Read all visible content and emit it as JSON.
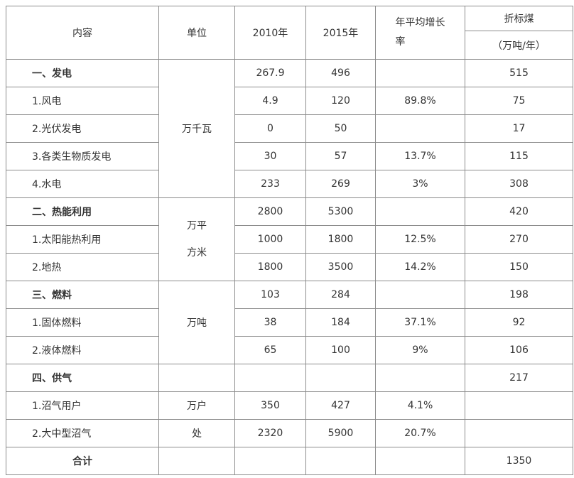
{
  "header": {
    "content": "内容",
    "unit": "单位",
    "y2010": "2010年",
    "y2015": "2015年",
    "growth": "年平均增长率",
    "coal": "折标煤",
    "coal_unit": "（万吨/年）"
  },
  "rows": [
    {
      "content": "一、发电",
      "unit": "万千瓦",
      "y2010": 267.9,
      "y2015": 496,
      "coal": 515
    },
    {
      "content": "1.风电",
      "y2010": 4.9,
      "y2015": 120,
      "growth": "89.8%",
      "coal": 75
    },
    {
      "content": "2.光伏发电",
      "y2010": 0,
      "y2015": 50,
      "coal": 17
    },
    {
      "content": "3.各类生物质发电",
      "y2010": 30,
      "y2015": 57,
      "growth": "13.7%",
      "coal": 115
    },
    {
      "content": "4.水电",
      "y2010": 233,
      "y2015": 269,
      "growth": "3%",
      "coal": 308
    },
    {
      "content": "二、热能利用",
      "unit": "万平方米",
      "y2010": 2800,
      "y2015": 5300,
      "coal": 420
    },
    {
      "content": "1.太阳能热利用",
      "y2010": 1000,
      "y2015": 1800,
      "growth": "12.5%",
      "coal": 270
    },
    {
      "content": "2.地热",
      "y2010": 1800,
      "y2015": 3500,
      "growth": "14.2%",
      "coal": 150
    },
    {
      "content": "三、燃料",
      "unit": "万吨",
      "y2010": 103,
      "y2015": 284,
      "coal": 198
    },
    {
      "content": "1.固体燃料",
      "y2010": 38,
      "y2015": 184,
      "growth": "37.1%",
      "coal": 92
    },
    {
      "content": "2.液体燃料",
      "y2010": 65,
      "y2015": 100,
      "growth": "9%",
      "coal": 106
    },
    {
      "content": "四、供气",
      "coal": 217
    },
    {
      "content": "1.沼气用户",
      "unit": "万户",
      "y2010": 350,
      "y2015": 427,
      "growth": "4.1%"
    },
    {
      "content": "2.大中型沼气",
      "unit": "处",
      "y2010": 2320,
      "y2015": 5900,
      "growth": "20.7%"
    },
    {
      "content": "合计",
      "coal": 1350
    }
  ]
}
